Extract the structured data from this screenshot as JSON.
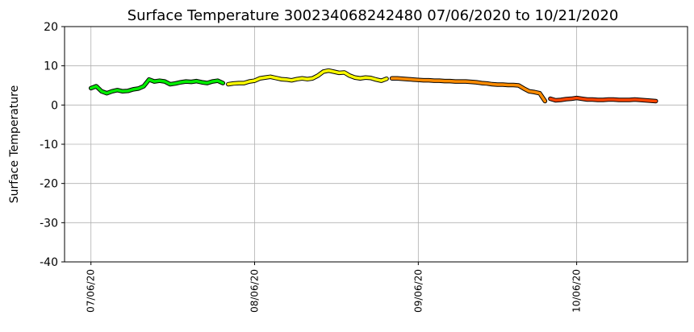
{
  "chart_data": {
    "type": "line",
    "title": "Surface Temperature 300234068242480  07/06/2020 to 10/21/2020",
    "y_label": "Surface Temperature",
    "xlim": [
      "2020-07-01",
      "2020-10-27"
    ],
    "xticks": [
      {
        "value": "2020-07-06",
        "label": "07/06/20"
      },
      {
        "value": "2020-08-06",
        "label": "08/06/20"
      },
      {
        "value": "2020-09-06",
        "label": "09/06/20"
      },
      {
        "value": "2020-10-06",
        "label": "10/06/20"
      }
    ],
    "ylim": [
      -40,
      20
    ],
    "yticks": [
      -40,
      -30,
      -20,
      -10,
      0,
      10,
      20
    ],
    "grid": true,
    "series": [
      {
        "color": "#00ee00",
        "x": [
          "2020-07-06",
          "2020-07-07",
          "2020-07-08",
          "2020-07-09",
          "2020-07-10",
          "2020-07-11",
          "2020-07-12",
          "2020-07-13",
          "2020-07-14",
          "2020-07-15",
          "2020-07-16",
          "2020-07-17",
          "2020-07-18",
          "2020-07-19",
          "2020-07-20",
          "2020-07-21",
          "2020-07-22",
          "2020-07-23",
          "2020-07-24",
          "2020-07-25",
          "2020-07-26",
          "2020-07-27",
          "2020-07-28",
          "2020-07-29",
          "2020-07-30",
          "2020-07-31"
        ],
        "values": [
          4.3,
          4.8,
          3.5,
          3.0,
          3.5,
          3.8,
          3.5,
          3.6,
          4.0,
          4.2,
          4.8,
          6.5,
          6.0,
          6.2,
          6.0,
          5.3,
          5.5,
          5.8,
          6.0,
          5.9,
          6.1,
          5.8,
          5.6,
          6.0,
          6.2,
          5.6
        ]
      },
      {
        "color": "#ffff00",
        "x": [
          "2020-08-01",
          "2020-08-02",
          "2020-08-03",
          "2020-08-04",
          "2020-08-05",
          "2020-08-06",
          "2020-08-07",
          "2020-08-08",
          "2020-08-09",
          "2020-08-10",
          "2020-08-11",
          "2020-08-12",
          "2020-08-13",
          "2020-08-14",
          "2020-08-15",
          "2020-08-16",
          "2020-08-17",
          "2020-08-18",
          "2020-08-19",
          "2020-08-20",
          "2020-08-21",
          "2020-08-22",
          "2020-08-23",
          "2020-08-24",
          "2020-08-25",
          "2020-08-26",
          "2020-08-27",
          "2020-08-28",
          "2020-08-29",
          "2020-08-30",
          "2020-08-31"
        ],
        "values": [
          5.3,
          5.5,
          5.6,
          5.6,
          6.0,
          6.2,
          6.8,
          7.0,
          7.2,
          6.9,
          6.6,
          6.5,
          6.3,
          6.6,
          6.8,
          6.6,
          6.8,
          7.5,
          8.5,
          8.8,
          8.5,
          8.2,
          8.3,
          7.5,
          7.0,
          6.8,
          7.0,
          6.9,
          6.5,
          6.2,
          6.7
        ]
      },
      {
        "color": "#ff8c00",
        "x": [
          "2020-09-01",
          "2020-09-02",
          "2020-09-03",
          "2020-09-04",
          "2020-09-05",
          "2020-09-06",
          "2020-09-07",
          "2020-09-08",
          "2020-09-09",
          "2020-09-10",
          "2020-09-11",
          "2020-09-12",
          "2020-09-13",
          "2020-09-14",
          "2020-09-15",
          "2020-09-16",
          "2020-09-17",
          "2020-09-18",
          "2020-09-19",
          "2020-09-20",
          "2020-09-21",
          "2020-09-22",
          "2020-09-23",
          "2020-09-24",
          "2020-09-25",
          "2020-09-26",
          "2020-09-27",
          "2020-09-28",
          "2020-09-29",
          "2020-09-30"
        ],
        "values": [
          6.8,
          6.8,
          6.7,
          6.6,
          6.5,
          6.4,
          6.3,
          6.3,
          6.2,
          6.2,
          6.1,
          6.1,
          6.0,
          6.0,
          6.0,
          5.9,
          5.8,
          5.6,
          5.5,
          5.3,
          5.2,
          5.2,
          5.1,
          5.1,
          5.0,
          4.2,
          3.5,
          3.3,
          3.0,
          1.0
        ]
      },
      {
        "color": "#ff4500",
        "x": [
          "2020-10-01",
          "2020-10-02",
          "2020-10-03",
          "2020-10-04",
          "2020-10-05",
          "2020-10-06",
          "2020-10-07",
          "2020-10-08",
          "2020-10-09",
          "2020-10-10",
          "2020-10-11",
          "2020-10-12",
          "2020-10-13",
          "2020-10-14",
          "2020-10-15",
          "2020-10-16",
          "2020-10-17",
          "2020-10-18",
          "2020-10-19",
          "2020-10-20",
          "2020-10-21"
        ],
        "values": [
          1.6,
          1.2,
          1.3,
          1.5,
          1.6,
          1.8,
          1.6,
          1.4,
          1.4,
          1.3,
          1.3,
          1.4,
          1.4,
          1.3,
          1.3,
          1.3,
          1.4,
          1.3,
          1.2,
          1.1,
          1.0
        ]
      }
    ]
  }
}
